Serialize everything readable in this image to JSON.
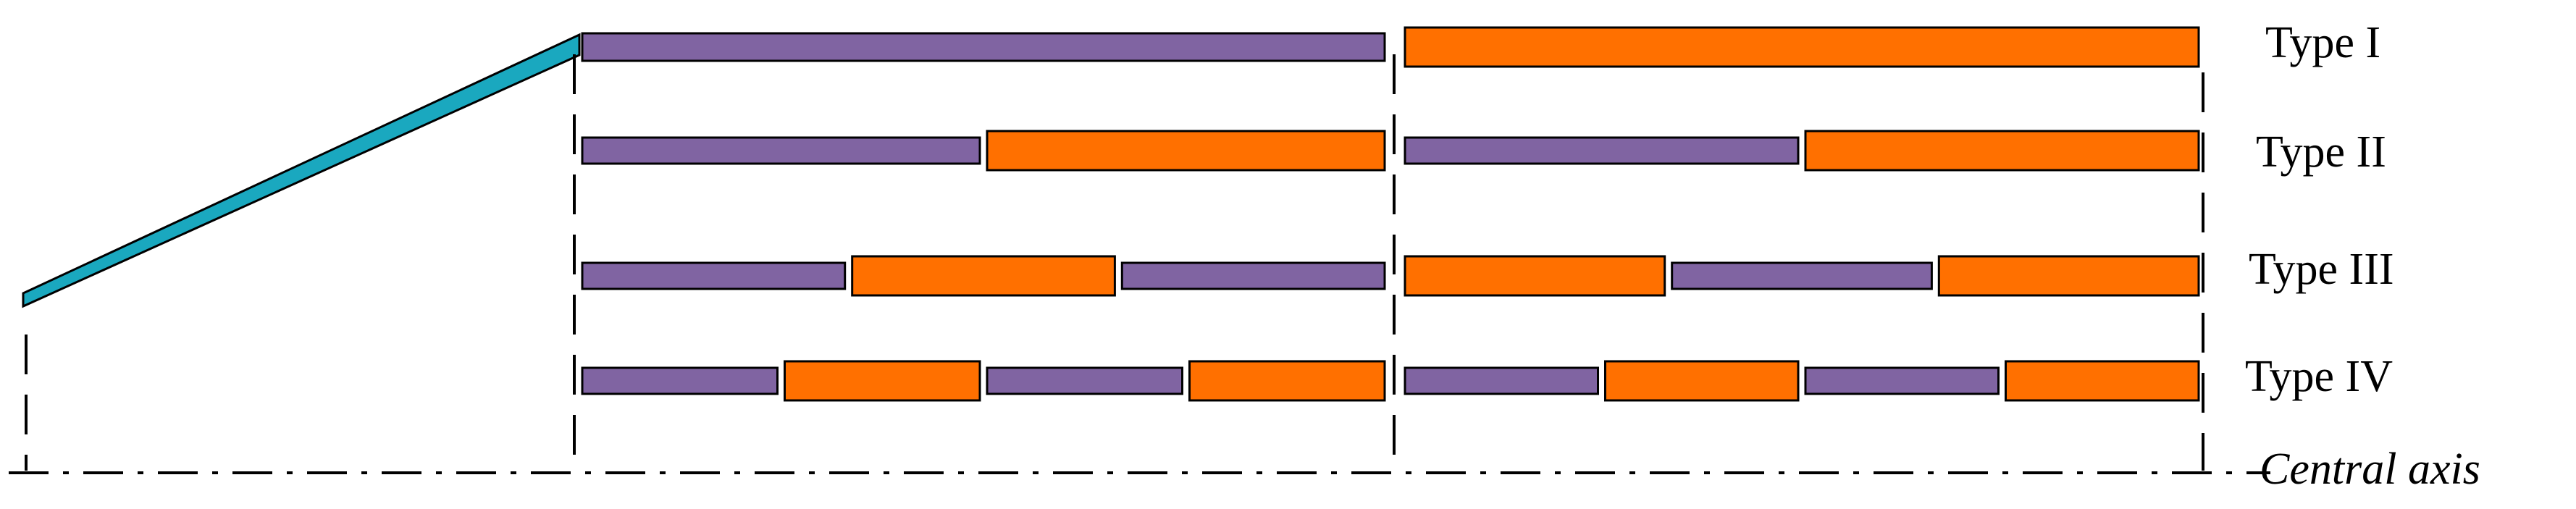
{
  "types": [
    {
      "label": "Type I",
      "segments": [
        [
          "purple"
        ],
        [
          "orange"
        ]
      ]
    },
    {
      "label": "Type II",
      "segments": [
        [
          "purple",
          "orange"
        ],
        [
          "purple",
          "orange"
        ]
      ]
    },
    {
      "label": "Type III",
      "segments": [
        [
          "purple",
          "orange",
          "purple"
        ],
        [
          "orange",
          "purple",
          "orange"
        ]
      ]
    },
    {
      "label": "Type IV",
      "segments": [
        [
          "purple",
          "orange",
          "purple",
          "orange"
        ],
        [
          "purple",
          "orange",
          "purple",
          "orange"
        ]
      ]
    }
  ],
  "axis_label": "Central axis",
  "colors": {
    "purple": "#8064a2",
    "orange": "#ff7000",
    "teal": "#1aa8bf",
    "stroke": "#000000"
  }
}
